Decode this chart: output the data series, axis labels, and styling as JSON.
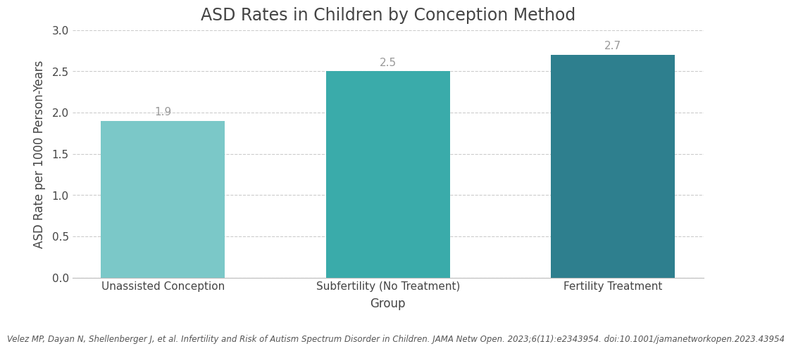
{
  "title": "ASD Rates in Children by Conception Method",
  "categories": [
    "Unassisted Conception",
    "Subfertility (No Treatment)",
    "Fertility Treatment"
  ],
  "values": [
    1.9,
    2.5,
    2.7
  ],
  "bar_colors": [
    "#7bc8c8",
    "#3aabaa",
    "#2e7f8e"
  ],
  "xlabel": "Group",
  "ylabel": "ASD Rate per 1000 Person-Years",
  "ylim": [
    0,
    3.0
  ],
  "yticks": [
    0.0,
    0.5,
    1.0,
    1.5,
    2.0,
    2.5,
    3.0
  ],
  "grid_color": "#cccccc",
  "bar_width": 0.55,
  "title_fontsize": 17,
  "label_fontsize": 12,
  "tick_fontsize": 11,
  "annotation_fontsize": 11,
  "annotation_color": "#999999",
  "background_color": "#ffffff",
  "citation": "Velez MP, Dayan N, Shellenberger J, et al. Infertility and Risk of Autism Spectrum Disorder in Children. JAMA Netw Open. 2023;6(11):e2343954. doi:10.1001/jamanetworkopen.2023.43954",
  "citation_fontsize": 8.5,
  "spine_color": "#bbbbbb",
  "text_color": "#444444"
}
